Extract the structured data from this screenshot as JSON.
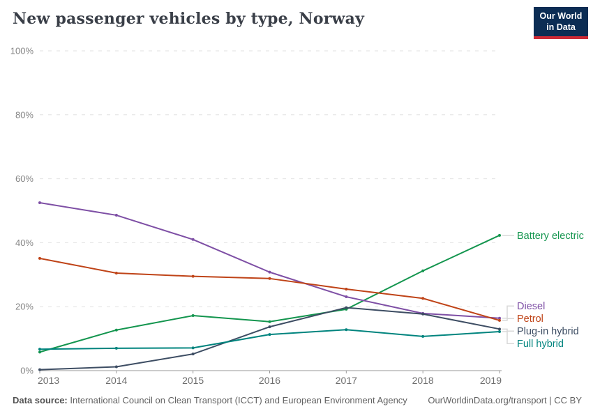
{
  "header": {
    "title": "New passenger vehicles by type, Norway",
    "logo": {
      "line1": "Our World",
      "line2": "in Data",
      "bg_color": "#0c2d54",
      "accent_color": "#cc2a36"
    }
  },
  "chart_data": {
    "type": "line",
    "x": [
      "2013",
      "2014",
      "2015",
      "2016",
      "2017",
      "2018",
      "2019"
    ],
    "series": [
      {
        "name": "Battery electric",
        "color": "#13954e",
        "values": [
          5.8,
          12.7,
          17.2,
          15.3,
          19.2,
          31.2,
          42.3
        ]
      },
      {
        "name": "Diesel",
        "color": "#7e4fa5",
        "values": [
          52.5,
          48.6,
          41.0,
          30.8,
          23.1,
          17.9,
          16.4
        ]
      },
      {
        "name": "Petrol",
        "color": "#bf4317",
        "values": [
          35.1,
          30.5,
          29.5,
          28.8,
          25.5,
          22.6,
          15.7
        ]
      },
      {
        "name": "Plug-in hybrid",
        "color": "#3d4d63",
        "values": [
          0.3,
          1.2,
          5.2,
          13.7,
          19.7,
          17.7,
          13.0
        ]
      },
      {
        "name": "Full hybrid",
        "color": "#00847e",
        "values": [
          6.7,
          7.0,
          7.1,
          11.3,
          12.8,
          10.7,
          12.2
        ]
      }
    ],
    "ylim": [
      0,
      100
    ],
    "yticks": [
      {
        "value": 0,
        "label": "0%"
      },
      {
        "value": 20,
        "label": "20%"
      },
      {
        "value": 40,
        "label": "40%"
      },
      {
        "value": 60,
        "label": "60%"
      },
      {
        "value": 80,
        "label": "80%"
      },
      {
        "value": 100,
        "label": "100%"
      }
    ],
    "grid": "horizontal-dashed",
    "legend_position": "right-of-line-ends"
  },
  "footer": {
    "source_label": "Data source:",
    "source_text": "International Council on Clean Transport (ICCT) and European Environment Agency",
    "right_text": "OurWorldinData.org/transport | CC BY"
  }
}
